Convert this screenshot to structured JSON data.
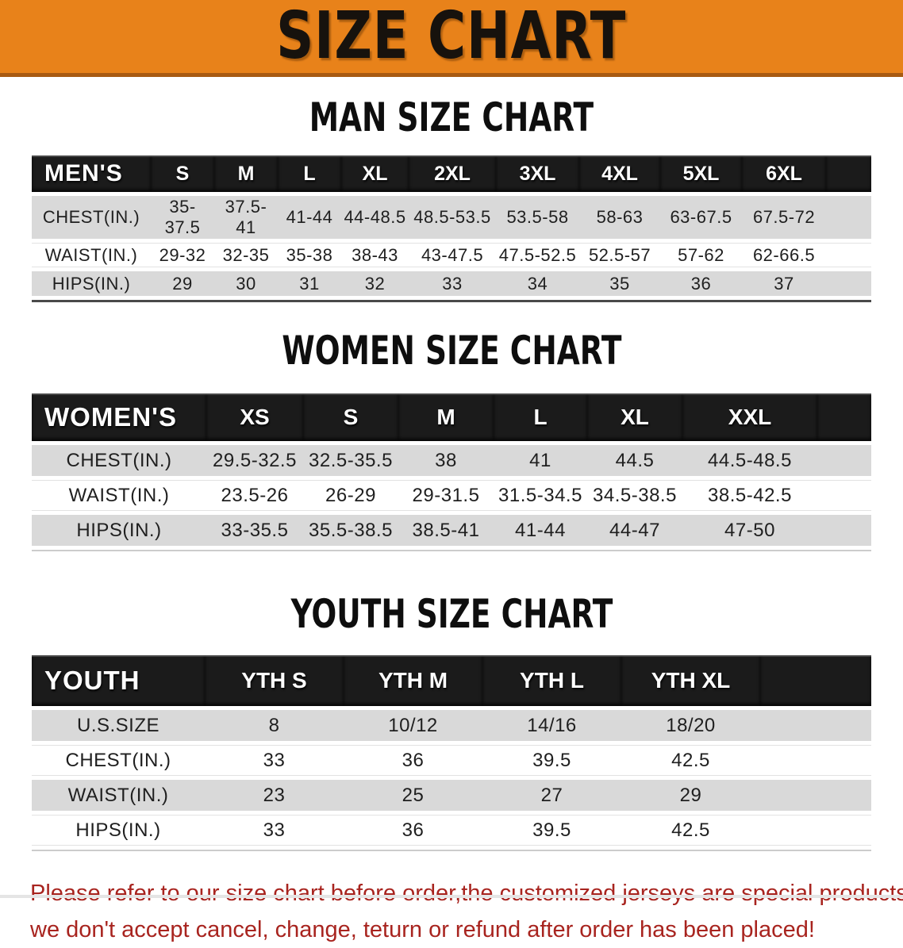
{
  "banner": {
    "title": "SIZE CHART",
    "bg_color": "#E8821A",
    "border_color": "#A85A12",
    "text_color": "#17120d"
  },
  "sections": {
    "men_heading": "MAN SIZE CHART",
    "women_heading": "WOMEN SIZE CHART",
    "youth_heading": "YOUTH SIZE CHART"
  },
  "tables": {
    "men": {
      "label": "MEN'S",
      "columns": [
        "S",
        "M",
        "L",
        "XL",
        "2XL",
        "3XL",
        "4XL",
        "5XL",
        "6XL"
      ],
      "rows": [
        {
          "label": "CHEST(IN.)",
          "values": [
            "35-37.5",
            "37.5-41",
            "41-44",
            "44-48.5",
            "48.5-53.5",
            "53.5-58",
            "58-63",
            "63-67.5",
            "67.5-72"
          ]
        },
        {
          "label": "WAIST(IN.)",
          "values": [
            "29-32",
            "32-35",
            "35-38",
            "38-43",
            "43-47.5",
            "47.5-52.5",
            "52.5-57",
            "57-62",
            "62-66.5"
          ]
        },
        {
          "label": "HIPS(IN.)",
          "values": [
            "29",
            "30",
            "31",
            "32",
            "33",
            "34",
            "35",
            "36",
            "37"
          ]
        }
      ]
    },
    "women": {
      "label": "WOMEN'S",
      "columns": [
        "XS",
        "S",
        "M",
        "L",
        "XL",
        "XXL"
      ],
      "rows": [
        {
          "label": "CHEST(IN.)",
          "values": [
            "29.5-32.5",
            "32.5-35.5",
            "38",
            "41",
            "44.5",
            "44.5-48.5"
          ]
        },
        {
          "label": "WAIST(IN.)",
          "values": [
            "23.5-26",
            "26-29",
            "29-31.5",
            "31.5-34.5",
            "34.5-38.5",
            "38.5-42.5"
          ]
        },
        {
          "label": "HIPS(IN.)",
          "values": [
            "33-35.5",
            "35.5-38.5",
            "38.5-41",
            "41-44",
            "44-47",
            "47-50"
          ]
        }
      ]
    },
    "youth": {
      "label": "YOUTH",
      "columns": [
        "YTH S",
        "YTH M",
        "YTH L",
        "YTH XL"
      ],
      "rows": [
        {
          "label": "U.S.SIZE",
          "values": [
            "8",
            "10/12",
            "14/16",
            "18/20"
          ]
        },
        {
          "label": "CHEST(IN.)",
          "values": [
            "33",
            "36",
            "39.5",
            "42.5"
          ]
        },
        {
          "label": "WAIST(IN.)",
          "values": [
            "23",
            "25",
            "27",
            "29"
          ]
        },
        {
          "label": "HIPS(IN.)",
          "values": [
            "33",
            "36",
            "39.5",
            "42.5"
          ]
        }
      ]
    }
  },
  "disclaimer": {
    "line1": "Please refer to our size chart before order,the customized jerseys are special products,",
    "line2": "we don't accept cancel, change, teturn or refund after order has been placed!",
    "text_color": "#A8241F"
  },
  "table_row_colors": {
    "stripe": "#D9D9D9",
    "plain": "#FFFFFF",
    "header_bg": "#1B1B1B"
  }
}
